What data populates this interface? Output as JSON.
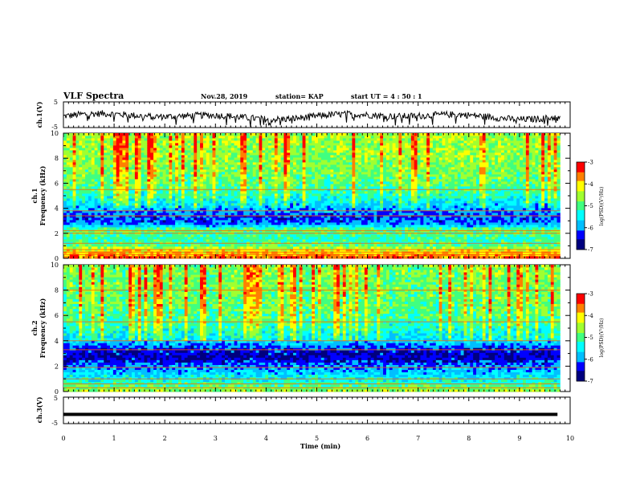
{
  "header": {
    "title": "VLF Spectra",
    "date": "Nov.28, 2019",
    "station": "station= KAP",
    "start": "start  UT =   4 : 50 : 1"
  },
  "chart_data": [
    {
      "type": "line",
      "panel": "ch1-waveform",
      "ylabel": "ch.1(V)",
      "ylim": [
        -5,
        5
      ],
      "yticks": [
        "5",
        "-5"
      ],
      "xlim": [
        0,
        10
      ],
      "color": "#000000"
    },
    {
      "type": "heatmap",
      "panel": "ch1-spectrogram",
      "ylabel": "ch.1\nFrequency (kHz)",
      "ylim": [
        0,
        10
      ],
      "yticks": [
        "0",
        "2",
        "4",
        "6",
        "8",
        "10"
      ],
      "xlim": [
        0,
        9.8
      ],
      "colorbar": {
        "label": "log(PSD)(V²/Hz)",
        "range": [
          -7,
          -3
        ],
        "ticks": [
          "-3",
          "-4",
          "-5",
          "-6",
          "-7"
        ]
      },
      "horizontal_lines_khz": [
        0.3,
        0.5,
        0.7,
        1.2,
        2.0,
        2.2,
        3.4,
        3.8,
        5.5
      ],
      "profile": [
        {
          "f": 0.0,
          "level": -3.5
        },
        {
          "f": 0.6,
          "level": -4.2
        },
        {
          "f": 1.0,
          "level": -5.0
        },
        {
          "f": 1.5,
          "level": -5.2
        },
        {
          "f": 2.2,
          "level": -4.8
        },
        {
          "f": 2.6,
          "level": -6.0
        },
        {
          "f": 3.2,
          "level": -6.3
        },
        {
          "f": 4.0,
          "level": -5.8
        },
        {
          "f": 4.8,
          "level": -5.3
        },
        {
          "f": 6.0,
          "level": -4.9
        },
        {
          "f": 8.0,
          "level": -4.6
        },
        {
          "f": 10.0,
          "level": -4.5
        }
      ]
    },
    {
      "type": "heatmap",
      "panel": "ch2-spectrogram",
      "ylabel": "ch.2\nFrequency (kHz)",
      "ylim": [
        0,
        10
      ],
      "yticks": [
        "0",
        "2",
        "4",
        "6",
        "8",
        "10"
      ],
      "xlim": [
        0,
        9.8
      ],
      "colorbar": {
        "label": "log(PSD)(V²/Hz)",
        "range": [
          -7,
          -3
        ],
        "ticks": [
          "-3",
          "-4",
          "-5",
          "-6",
          "-7"
        ]
      },
      "horizontal_lines_khz": [
        0.3,
        0.6,
        1.0,
        1.9,
        3.3,
        4.0,
        5.5,
        8.0
      ],
      "profile": [
        {
          "f": 0.0,
          "level": -4.6
        },
        {
          "f": 0.8,
          "level": -5.4
        },
        {
          "f": 1.5,
          "level": -5.8
        },
        {
          "f": 2.0,
          "level": -6.1
        },
        {
          "f": 2.6,
          "level": -6.6
        },
        {
          "f": 3.2,
          "level": -6.4
        },
        {
          "f": 4.0,
          "level": -5.6
        },
        {
          "f": 5.0,
          "level": -5.2
        },
        {
          "f": 6.5,
          "level": -4.9
        },
        {
          "f": 8.0,
          "level": -4.8
        },
        {
          "f": 10.0,
          "level": -4.7
        }
      ]
    },
    {
      "type": "line",
      "panel": "ch3-waveform",
      "ylabel": "ch.3(V)",
      "ylim": [
        -5,
        5
      ],
      "yticks": [
        "5",
        "-5"
      ],
      "xlim": [
        0,
        10
      ],
      "value_v": -1.5,
      "color": "#000000"
    }
  ],
  "xaxis": {
    "label": "Time (min)",
    "ticks": [
      "0",
      "1",
      "2",
      "3",
      "4",
      "5",
      "6",
      "7",
      "8",
      "9",
      "10"
    ],
    "xlim": [
      0,
      10
    ]
  },
  "colors": {
    "colormap": [
      "#00007f",
      "#0000ff",
      "#00bfff",
      "#00ffff",
      "#40ff80",
      "#a0ff30",
      "#ffff00",
      "#ff8000",
      "#ff0000"
    ]
  }
}
